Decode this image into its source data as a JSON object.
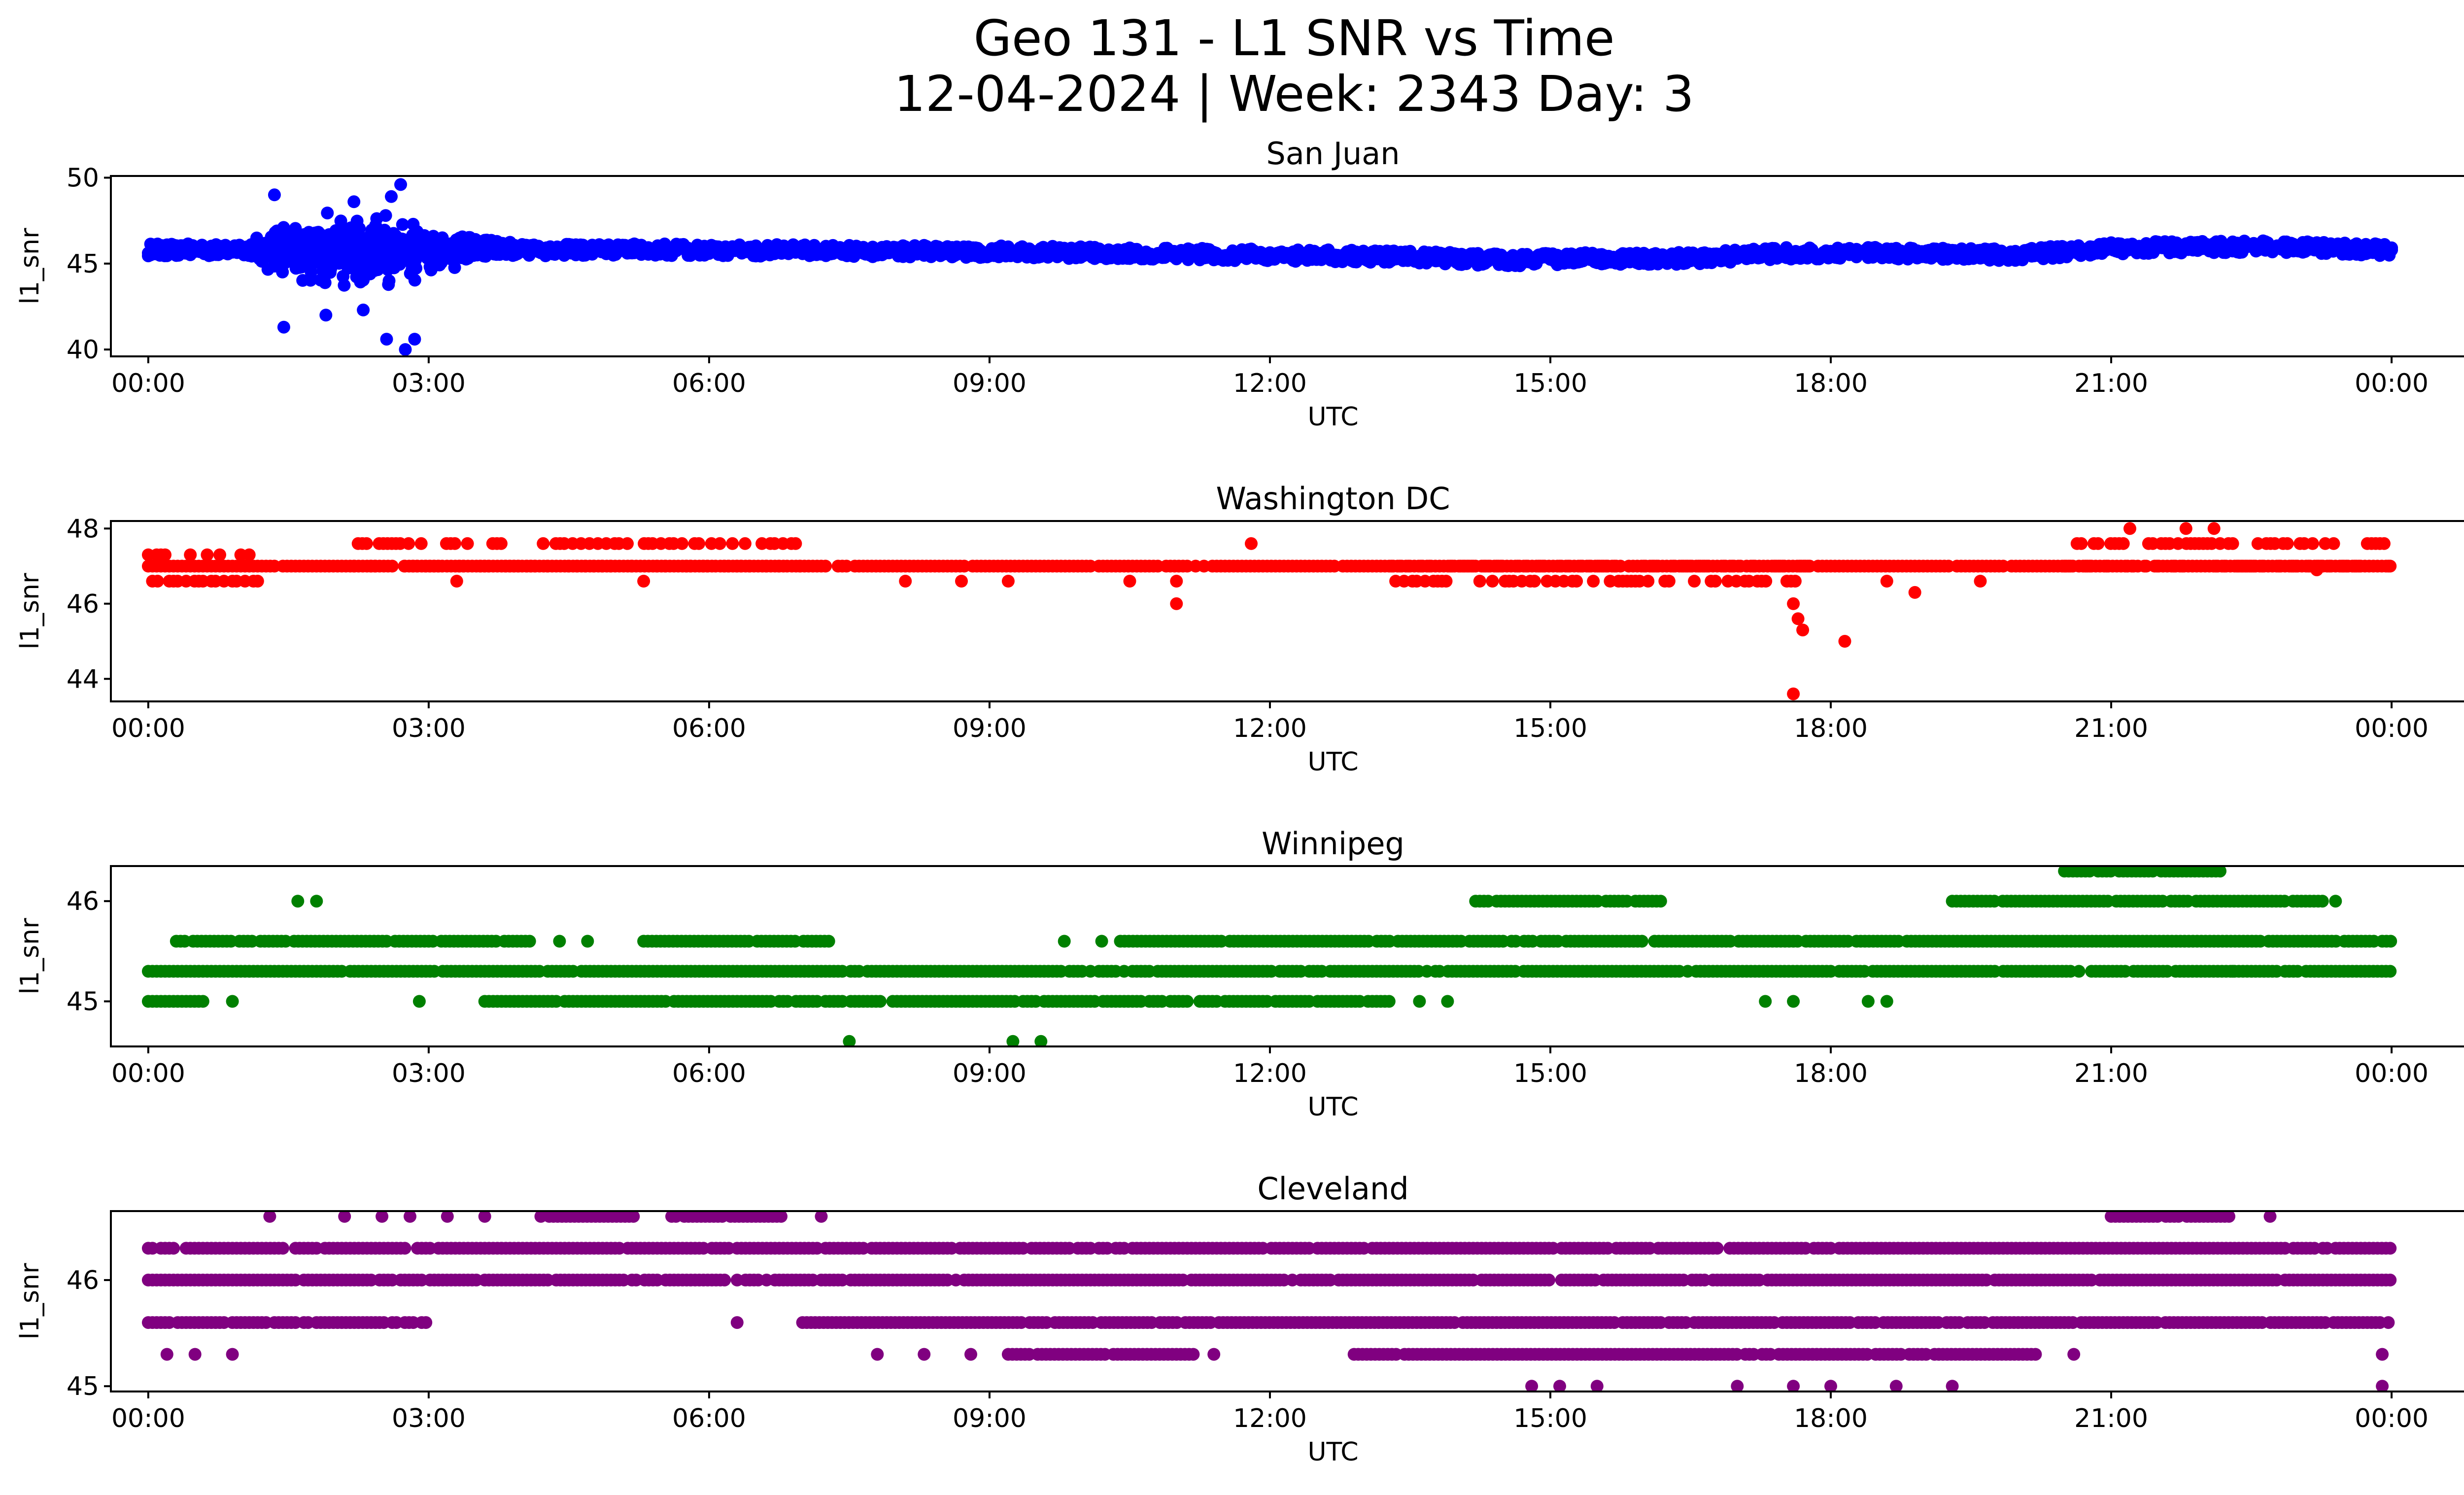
{
  "figure": {
    "title_line1": "Geo 131 - L1 SNR vs Time",
    "title_line2": "12-04-2024 | Week: 2343 Day: 3"
  },
  "chart_data": [
    {
      "type": "scatter",
      "title": "San Juan",
      "xlabel": "UTC",
      "ylabel": "l1_snr",
      "color": "#0000ff",
      "x_unit": "hours",
      "xlim": [
        -0.4,
        25.75
      ],
      "ylim": [
        39.6,
        50.1
      ],
      "xticks": [
        0,
        3,
        6,
        9,
        12,
        15,
        18,
        21,
        24
      ],
      "xtick_labels": [
        "00:00",
        "03:00",
        "06:00",
        "09:00",
        "12:00",
        "15:00",
        "18:00",
        "21:00",
        "00:00"
      ],
      "yticks": [
        40,
        45,
        50
      ],
      "ytick_labels": [
        "40",
        "45",
        "50"
      ],
      "baseline": [
        [
          0,
          45.8
        ],
        [
          3,
          45.8
        ],
        [
          6,
          45.8
        ],
        [
          9,
          45.7
        ],
        [
          10.5,
          45.6
        ],
        [
          12,
          45.5
        ],
        [
          13.5,
          45.4
        ],
        [
          14.5,
          45.2
        ],
        [
          15.5,
          45.3
        ],
        [
          16.5,
          45.3
        ],
        [
          17.5,
          45.6
        ],
        [
          19,
          45.6
        ],
        [
          20,
          45.5
        ],
        [
          21,
          45.9
        ],
        [
          22.5,
          46.0
        ],
        [
          24,
          45.8
        ]
      ],
      "band_spread": 0.35,
      "noisy_window": [
        1.1,
        3.3
      ],
      "noisy_spread": 2.6,
      "extreme_points": [
        [
          1.35,
          49.0
        ],
        [
          1.45,
          41.3
        ],
        [
          2.2,
          48.6
        ],
        [
          2.55,
          40.6
        ],
        [
          2.7,
          49.6
        ],
        [
          2.75,
          40.0
        ],
        [
          2.85,
          40.6
        ],
        [
          2.6,
          48.9
        ],
        [
          1.9,
          42.0
        ],
        [
          2.3,
          42.3
        ]
      ]
    },
    {
      "type": "scatter",
      "title": "Washington DC",
      "xlabel": "UTC",
      "ylabel": "l1_snr",
      "color": "#ff0000",
      "x_unit": "hours",
      "xlim": [
        -0.4,
        25.75
      ],
      "ylim": [
        43.4,
        48.2
      ],
      "xticks": [
        0,
        3,
        6,
        9,
        12,
        15,
        18,
        21,
        24
      ],
      "xtick_labels": [
        "00:00",
        "03:00",
        "06:00",
        "09:00",
        "12:00",
        "15:00",
        "18:00",
        "21:00",
        "00:00"
      ],
      "yticks": [
        44,
        46,
        48
      ],
      "ytick_labels": [
        "44",
        "46",
        "48"
      ],
      "levels": [
        [
          0,
          1.2,
          46.6,
          47.3
        ],
        [
          0,
          24,
          47.0,
          47.0
        ],
        [
          2.2,
          7.0,
          47.0,
          47.6
        ],
        [
          13.3,
          17.8,
          46.6,
          47.0
        ],
        [
          20.5,
          24,
          47.0,
          47.6
        ]
      ],
      "outliers": [
        [
          0.1,
          46.6
        ],
        [
          3.3,
          46.6
        ],
        [
          5.3,
          46.6
        ],
        [
          8.1,
          46.6
        ],
        [
          8.7,
          46.6
        ],
        [
          9.2,
          46.6
        ],
        [
          10.5,
          46.6
        ],
        [
          11.0,
          46.6
        ],
        [
          11.0,
          46.0
        ],
        [
          11.8,
          47.6
        ],
        [
          17.6,
          46.0
        ],
        [
          17.65,
          45.6
        ],
        [
          17.7,
          45.3
        ],
        [
          17.6,
          43.6
        ],
        [
          18.15,
          45.0
        ],
        [
          18.6,
          46.6
        ],
        [
          18.9,
          46.3
        ],
        [
          19.6,
          46.6
        ],
        [
          21.2,
          48.0
        ],
        [
          21.8,
          48.0
        ],
        [
          22.1,
          48.0
        ],
        [
          23.2,
          46.9
        ]
      ]
    },
    {
      "type": "scatter",
      "title": "Winnipeg",
      "xlabel": "UTC",
      "ylabel": "l1_snr",
      "color": "#008000",
      "x_unit": "hours",
      "xlim": [
        -0.4,
        25.75
      ],
      "ylim": [
        44.55,
        46.35
      ],
      "xticks": [
        0,
        3,
        6,
        9,
        12,
        15,
        18,
        21,
        24
      ],
      "xtick_labels": [
        "00:00",
        "03:00",
        "06:00",
        "09:00",
        "12:00",
        "15:00",
        "18:00",
        "21:00",
        "00:00"
      ],
      "yticks": [
        45,
        46
      ],
      "ytick_labels": [
        "45",
        "46"
      ],
      "levels": [
        [
          0,
          24,
          45.3
        ],
        [
          0.3,
          4.1,
          45.6
        ],
        [
          5.3,
          7.3,
          45.6
        ],
        [
          10.4,
          24,
          45.6
        ],
        [
          3.6,
          13.3,
          45.0
        ],
        [
          0,
          0.6,
          45.0
        ],
        [
          19.3,
          23.3,
          46.0
        ],
        [
          20.5,
          22.2,
          46.3
        ],
        [
          14.2,
          16.2,
          46.0
        ]
      ],
      "outliers": [
        [
          0.9,
          45.0
        ],
        [
          1.6,
          46.0
        ],
        [
          1.8,
          46.0
        ],
        [
          2.9,
          45.0
        ],
        [
          4.4,
          45.6
        ],
        [
          4.7,
          45.6
        ],
        [
          7.5,
          44.6
        ],
        [
          9.25,
          44.6
        ],
        [
          9.55,
          44.6
        ],
        [
          9.8,
          45.6
        ],
        [
          10.2,
          45.6
        ],
        [
          13.6,
          45.0
        ],
        [
          13.9,
          45.0
        ],
        [
          17.3,
          45.0
        ],
        [
          17.6,
          45.0
        ],
        [
          18.4,
          45.0
        ],
        [
          18.6,
          45.0
        ],
        [
          22.3,
          45.3
        ],
        [
          23.4,
          46.0
        ]
      ]
    },
    {
      "type": "scatter",
      "title": "Cleveland",
      "xlabel": "UTC",
      "ylabel": "l1_snr",
      "color": "#800080",
      "x_unit": "hours",
      "xlim": [
        -0.4,
        25.75
      ],
      "ylim": [
        44.95,
        46.65
      ],
      "xticks": [
        0,
        3,
        6,
        9,
        12,
        15,
        18,
        21,
        24
      ],
      "xtick_labels": [
        "00:00",
        "03:00",
        "06:00",
        "09:00",
        "12:00",
        "15:00",
        "18:00",
        "21:00",
        "00:00"
      ],
      "yticks": [
        45,
        46
      ],
      "ytick_labels": [
        "45",
        "46"
      ],
      "levels": [
        [
          0,
          24,
          46.0
        ],
        [
          0,
          24,
          46.3
        ],
        [
          0,
          3.0,
          45.6
        ],
        [
          7.0,
          24,
          45.6
        ],
        [
          12.9,
          20.2,
          45.3
        ],
        [
          9.2,
          11.2,
          45.3
        ],
        [
          5.6,
          6.8,
          46.6
        ],
        [
          4.2,
          5.2,
          46.6
        ],
        [
          21.0,
          22.3,
          46.6
        ]
      ],
      "outliers": [
        [
          0.2,
          45.3
        ],
        [
          0.5,
          45.3
        ],
        [
          0.9,
          45.3
        ],
        [
          1.3,
          46.6
        ],
        [
          2.1,
          46.6
        ],
        [
          2.5,
          46.6
        ],
        [
          2.8,
          46.6
        ],
        [
          3.2,
          46.6
        ],
        [
          3.6,
          46.6
        ],
        [
          7.2,
          46.6
        ],
        [
          7.8,
          45.3
        ],
        [
          8.3,
          45.3
        ],
        [
          8.8,
          45.3
        ],
        [
          6.3,
          45.6
        ],
        [
          11.4,
          45.3
        ],
        [
          14.8,
          45.0
        ],
        [
          15.1,
          45.0
        ],
        [
          15.5,
          45.0
        ],
        [
          17.0,
          45.0
        ],
        [
          17.6,
          45.0
        ],
        [
          18.0,
          45.0
        ],
        [
          18.7,
          45.0
        ],
        [
          19.3,
          45.0
        ],
        [
          20.6,
          45.3
        ],
        [
          22.7,
          46.6
        ],
        [
          23.9,
          45.3
        ],
        [
          23.9,
          45.0
        ]
      ]
    }
  ]
}
